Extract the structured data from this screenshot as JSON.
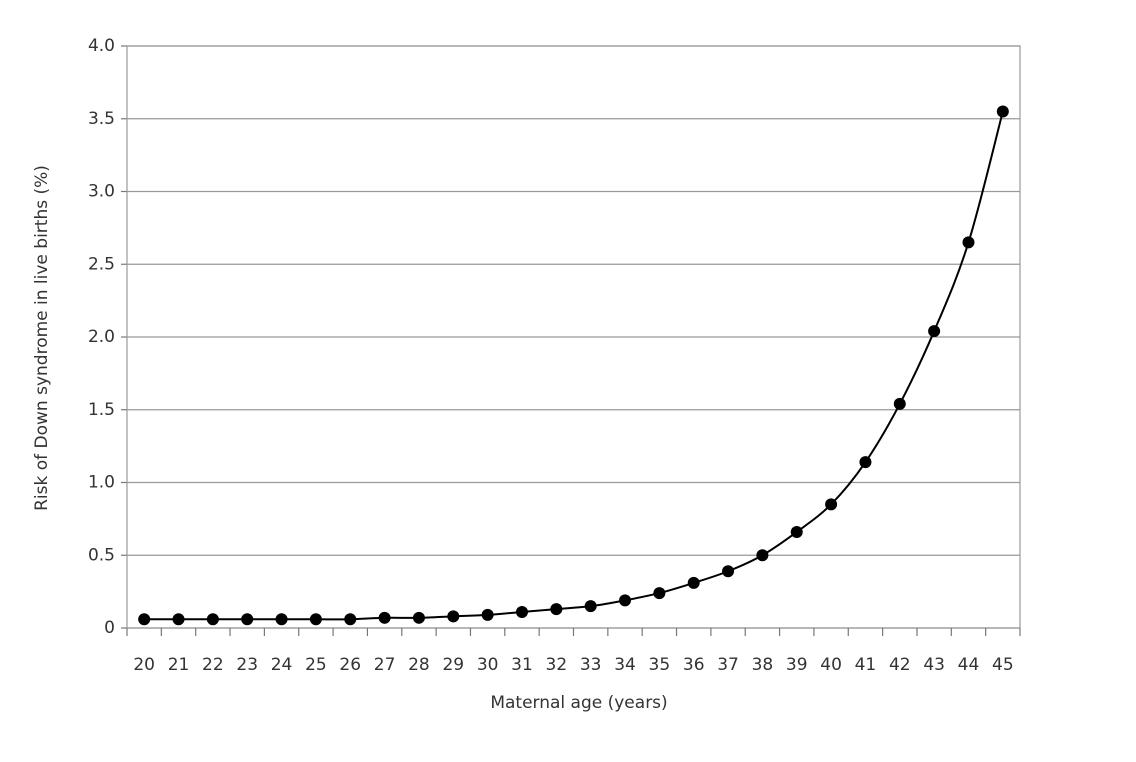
{
  "chart_data": {
    "type": "line",
    "xlabel": "Maternal age (years)",
    "ylabel": "Risk of Down syndrome in live births (%)",
    "categories": [
      "20",
      "21",
      "22",
      "23",
      "24",
      "25",
      "26",
      "27",
      "28",
      "29",
      "30",
      "31",
      "32",
      "33",
      "34",
      "35",
      "36",
      "37",
      "38",
      "39",
      "40",
      "41",
      "42",
      "43",
      "44",
      "45"
    ],
    "series": [
      {
        "color": "#000000",
        "values": [
          0.06,
          0.06,
          0.06,
          0.06,
          0.06,
          0.06,
          0.06,
          0.07,
          0.07,
          0.08,
          0.09,
          0.11,
          0.13,
          0.15,
          0.19,
          0.24,
          0.31,
          0.39,
          0.5,
          0.66,
          0.85,
          1.14,
          1.54,
          2.04,
          2.65,
          3.55
        ]
      }
    ],
    "ylim": [
      0,
      4
    ],
    "yticks": [
      0,
      0.5,
      {
        "value": 1,
        "label": "1.0"
      },
      1.5,
      {
        "value": 2,
        "label": "2.0"
      },
      2.5,
      {
        "value": 3,
        "label": "3.0"
      },
      3.5,
      {
        "value": 4,
        "label": "4.0"
      }
    ],
    "grid": true
  }
}
